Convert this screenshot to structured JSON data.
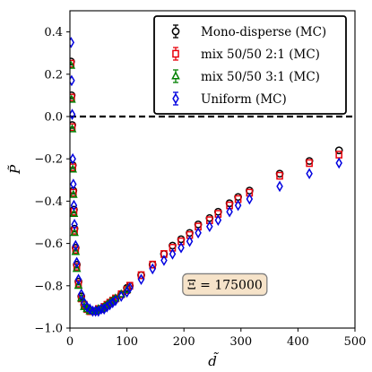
{
  "chart_data": {
    "type": "scatter",
    "title": "",
    "xlabel": "d̃",
    "ylabel": "P̃",
    "xlim": [
      0,
      500
    ],
    "ylim": [
      -1.0,
      0.5
    ],
    "xticks": [
      0,
      100,
      200,
      300,
      400,
      500
    ],
    "yticks": [
      -1.0,
      -0.8,
      -0.6,
      -0.4,
      -0.2,
      0.0,
      0.2,
      0.4
    ],
    "xtick_labels": [
      "0",
      "100",
      "200",
      "300",
      "400",
      "500"
    ],
    "ytick_labels": [
      "−1.0",
      "−0.8",
      "−0.6",
      "−0.4",
      "−0.2",
      "0.0",
      "0.2",
      "0.4"
    ],
    "grid": false,
    "legend_position": "top-right",
    "reference_line": {
      "y": 0.0,
      "style": "dashed",
      "color": "#000000"
    },
    "annotation": {
      "text": "Ξ = 175000",
      "x": 245,
      "y": -0.79
    },
    "series": [
      {
        "name": "Mono-disperse (MC)",
        "marker": "circle",
        "color": "#000000",
        "x": [
          2,
          3,
          4,
          5,
          6,
          7,
          8,
          10,
          12,
          15,
          20,
          25,
          30,
          35,
          40,
          45,
          50,
          55,
          60,
          65,
          70,
          75,
          80,
          90,
          100,
          105,
          125,
          145,
          165,
          180,
          195,
          210,
          225,
          245,
          260,
          280,
          295,
          315,
          368,
          420,
          472
        ],
        "y": [
          0.26,
          0.1,
          -0.04,
          -0.23,
          -0.35,
          -0.44,
          -0.53,
          -0.62,
          -0.7,
          -0.78,
          -0.85,
          -0.89,
          -0.91,
          -0.92,
          -0.92,
          -0.92,
          -0.91,
          -0.91,
          -0.9,
          -0.89,
          -0.88,
          -0.87,
          -0.86,
          -0.84,
          -0.81,
          -0.8,
          -0.75,
          -0.7,
          -0.65,
          -0.61,
          -0.58,
          -0.55,
          -0.51,
          -0.48,
          -0.45,
          -0.41,
          -0.38,
          -0.35,
          -0.27,
          -0.21,
          -0.16
        ]
      },
      {
        "name": "mix 50/50 2:1 (MC)",
        "marker": "square",
        "color": "#e8000b",
        "x": [
          2,
          3,
          4,
          5,
          6,
          7,
          8,
          10,
          12,
          15,
          20,
          25,
          30,
          35,
          40,
          45,
          50,
          55,
          60,
          65,
          70,
          75,
          80,
          90,
          100,
          105,
          125,
          145,
          165,
          180,
          195,
          210,
          225,
          245,
          260,
          280,
          295,
          315,
          368,
          420,
          472
        ],
        "y": [
          0.25,
          0.09,
          -0.05,
          -0.24,
          -0.36,
          -0.45,
          -0.54,
          -0.63,
          -0.71,
          -0.79,
          -0.86,
          -0.89,
          -0.91,
          -0.92,
          -0.92,
          -0.92,
          -0.91,
          -0.91,
          -0.9,
          -0.89,
          -0.88,
          -0.87,
          -0.86,
          -0.84,
          -0.82,
          -0.8,
          -0.75,
          -0.7,
          -0.65,
          -0.62,
          -0.59,
          -0.56,
          -0.52,
          -0.49,
          -0.46,
          -0.42,
          -0.39,
          -0.36,
          -0.28,
          -0.22,
          -0.18
        ]
      },
      {
        "name": "mix 50/50 3:1 (MC)",
        "marker": "triangle",
        "color": "#008000",
        "x": [
          2,
          3,
          4,
          5,
          6,
          7,
          8,
          10,
          12,
          15,
          20,
          25,
          30,
          35,
          40,
          45,
          50,
          55,
          60,
          65,
          70,
          75,
          80,
          90,
          100
        ],
        "y": [
          0.24,
          0.08,
          -0.06,
          -0.25,
          -0.37,
          -0.46,
          -0.55,
          -0.64,
          -0.72,
          -0.8,
          -0.86,
          -0.9,
          -0.91,
          -0.92,
          -0.92,
          -0.92,
          -0.91,
          -0.91,
          -0.9,
          -0.89,
          -0.88,
          -0.87,
          -0.86,
          -0.84,
          -0.82
        ]
      },
      {
        "name": "Uniform (MC)",
        "marker": "diamond",
        "color": "#0000e0",
        "x": [
          2,
          3,
          4,
          5,
          6,
          7,
          8,
          10,
          12,
          15,
          20,
          25,
          30,
          35,
          40,
          45,
          50,
          55,
          60,
          65,
          70,
          75,
          80,
          90,
          100,
          105,
          125,
          145,
          165,
          180,
          195,
          210,
          225,
          245,
          260,
          280,
          295,
          315,
          368,
          420,
          472
        ],
        "y": [
          0.35,
          0.17,
          0.01,
          -0.2,
          -0.32,
          -0.42,
          -0.51,
          -0.61,
          -0.69,
          -0.77,
          -0.84,
          -0.88,
          -0.9,
          -0.91,
          -0.92,
          -0.92,
          -0.92,
          -0.91,
          -0.91,
          -0.9,
          -0.89,
          -0.88,
          -0.87,
          -0.85,
          -0.83,
          -0.81,
          -0.77,
          -0.72,
          -0.68,
          -0.65,
          -0.62,
          -0.59,
          -0.55,
          -0.52,
          -0.49,
          -0.45,
          -0.42,
          -0.39,
          -0.33,
          -0.27,
          -0.22
        ]
      }
    ]
  }
}
